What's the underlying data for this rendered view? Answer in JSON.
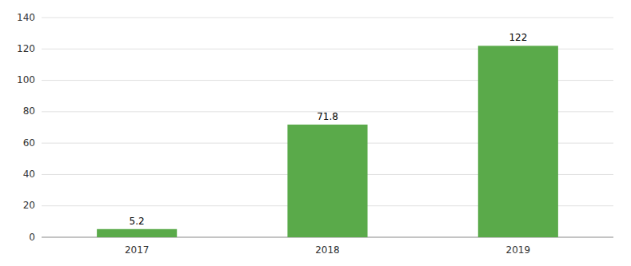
{
  "chart_data": {
    "type": "bar",
    "categories": [
      "2017",
      "2018",
      "2019"
    ],
    "values": [
      5.2,
      71.8,
      122
    ],
    "color": "#5aaa4a",
    "ylim": [
      0,
      140
    ],
    "yticks": [
      0,
      20,
      40,
      60,
      80,
      100,
      120,
      140
    ],
    "grid": true,
    "data_labels": true
  }
}
